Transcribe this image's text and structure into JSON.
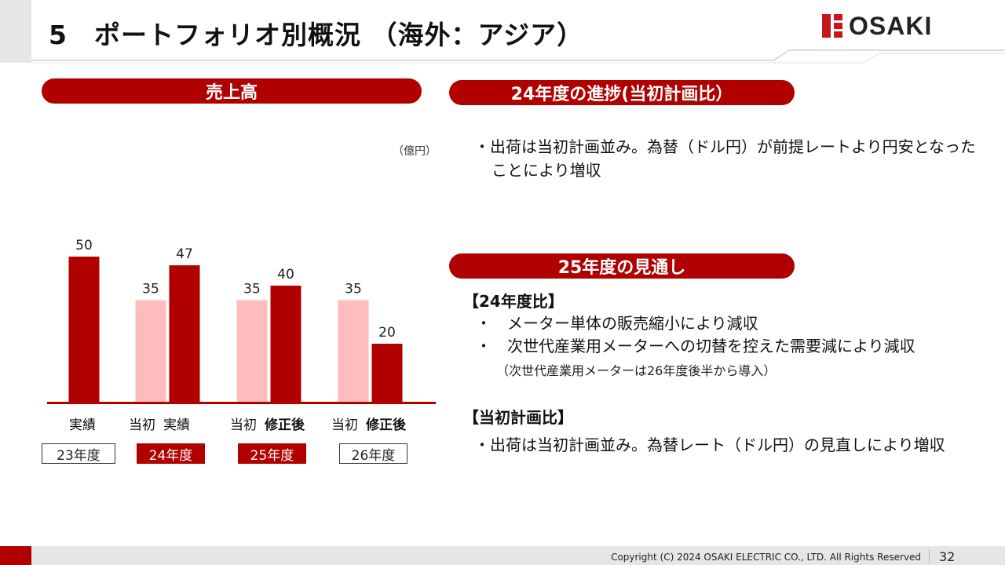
{
  "header": {
    "title": "5　ポートフォリオ別概況 （海外：アジア）",
    "logo_text": "OSAKI"
  },
  "colors": {
    "accent": "#b00000",
    "plan_bar": "#ffbcbc",
    "actual_bar": "#b00000",
    "logo_red": "#c8161d"
  },
  "left": {
    "pill_label": "売上高",
    "unit": "（億円）",
    "categories": [
      {
        "labels": [
          "実績"
        ],
        "year": "23年度",
        "filled": false
      },
      {
        "labels": [
          "当初",
          "実績"
        ],
        "year": "24年度",
        "filled": true
      },
      {
        "labels": [
          "当初",
          "修正後"
        ],
        "year": "25年度",
        "filled": true
      },
      {
        "labels": [
          "当初",
          "修正後"
        ],
        "year": "26年度",
        "filled": false
      }
    ]
  },
  "chart_data": {
    "type": "bar",
    "categories": [
      "23年度",
      "24年度",
      "25年度",
      "26年度"
    ],
    "series": [
      {
        "values": [
          null,
          35,
          35,
          35
        ]
      },
      {
        "values": [
          50,
          47,
          40,
          20
        ]
      }
    ],
    "title": "売上高",
    "ylabel": "（億円）",
    "ylim": [
      0,
      55
    ],
    "grid": false
  },
  "right": {
    "progress_pill": "24年度の進捗(当初計画比）",
    "progress_bullet_line1": "・出荷は当初計画並み。為替（ドル円）が前提レートより円安となった",
    "progress_bullet_line2": "ことにより増収",
    "outlook_pill": "25年度の見通し",
    "section1_header": "【24年度比】",
    "section1_bullets": [
      "・　メーター単体の販売縮小により減収",
      "・　次世代産業用メーターへの切替を控えた需要減により減収"
    ],
    "section1_note": "（次世代産業用メーターは26年度後半から導入）",
    "section2_header": "【当初計画比】",
    "section2_bullet": "・出荷は当初計画並み。為替レート（ドル円）の見直しにより増収"
  },
  "footer": {
    "copyright": "Copyright (C) 2024 OSAKI ELECTRIC CO., LTD. All Rights Reserved",
    "page": "32"
  }
}
